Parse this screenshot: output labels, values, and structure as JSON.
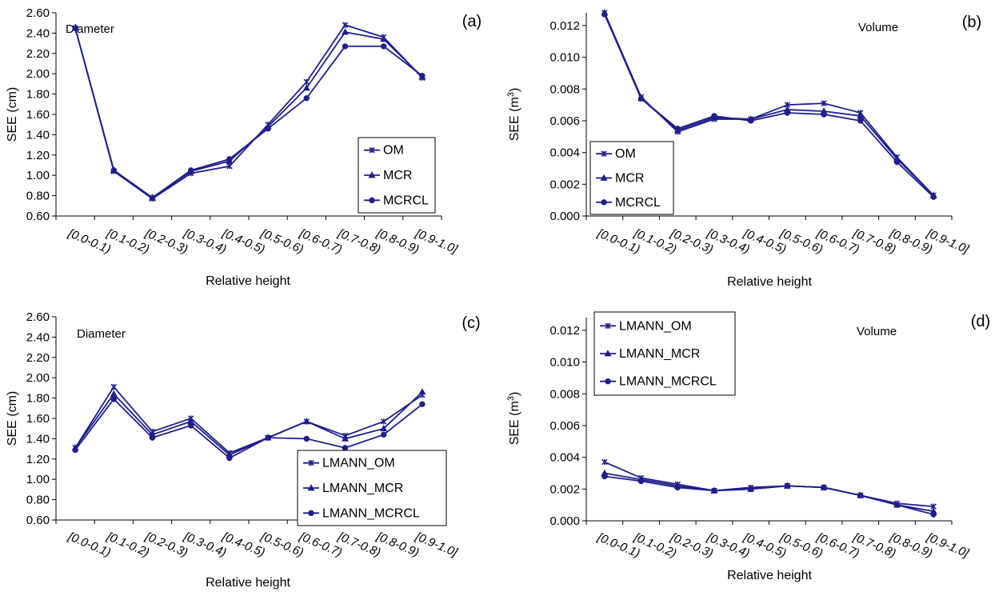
{
  "colors": {
    "series": "#1f1f8c",
    "axis": "#000000",
    "legend_border": "#000000"
  },
  "shared": {
    "categories": [
      "[0.0-0.1)",
      "[0.1-0.2)",
      "[0.2-0.3)",
      "[0.3-0.4)",
      "[0.4-0.5)",
      "[0.5-0.6)",
      "[0.6-0.7)",
      "[0.7-0.8)",
      "[0.8-0.9)",
      "[0.9-1.0]"
    ],
    "xlabel": "Relative height"
  },
  "chart_data": [
    {
      "type": "line",
      "panel_label": "(a)",
      "annotation": "Diameter",
      "ylabel": "SEE (cm)",
      "ylim": [
        0.6,
        2.6
      ],
      "yticks": [
        "0.60",
        "0.80",
        "1.00",
        "1.20",
        "1.40",
        "1.60",
        "1.80",
        "2.00",
        "2.20",
        "2.40",
        "2.60"
      ],
      "legend_position": "bottom-right",
      "series": [
        {
          "name": "OM",
          "marker": "x",
          "values": [
            2.45,
            1.04,
            0.77,
            1.02,
            1.09,
            1.5,
            1.92,
            2.48,
            2.36,
            1.96
          ]
        },
        {
          "name": "MCR",
          "marker": "triangle",
          "values": [
            2.45,
            1.05,
            0.78,
            1.04,
            1.14,
            1.48,
            1.86,
            2.41,
            2.34,
            1.97
          ]
        },
        {
          "name": "MCRCL",
          "marker": "circle",
          "values": [
            2.45,
            1.05,
            0.78,
            1.05,
            1.16,
            1.46,
            1.76,
            2.27,
            2.27,
            1.98
          ]
        }
      ]
    },
    {
      "type": "line",
      "panel_label": "(b)",
      "annotation": "Volume",
      "ylabel_main": "SEE (m",
      "ylabel_sup": "3",
      "ylabel_end": ")",
      "ylim": [
        0.0,
        0.0128
      ],
      "yticks": [
        "0.000",
        "0.002",
        "0.004",
        "0.006",
        "0.008",
        "0.010",
        "0.012"
      ],
      "legend_position": "bottom-left",
      "series": [
        {
          "name": "OM",
          "marker": "x",
          "values": [
            0.0128,
            0.0075,
            0.0053,
            0.0061,
            0.0061,
            0.007,
            0.0071,
            0.0065,
            0.0037,
            0.0013
          ]
        },
        {
          "name": "MCR",
          "marker": "triangle",
          "values": [
            0.0128,
            0.0074,
            0.0054,
            0.0062,
            0.0061,
            0.0067,
            0.0066,
            0.0063,
            0.0036,
            0.0013
          ]
        },
        {
          "name": "MCRCL",
          "marker": "circle",
          "values": [
            0.0127,
            0.0074,
            0.0055,
            0.0063,
            0.006,
            0.0065,
            0.0064,
            0.006,
            0.0034,
            0.0012
          ]
        }
      ]
    },
    {
      "type": "line",
      "panel_label": "(c)",
      "annotation": "Diameter",
      "ylabel": "SEE (cm)",
      "ylim": [
        0.6,
        2.6
      ],
      "yticks": [
        "0.60",
        "0.80",
        "1.00",
        "1.20",
        "1.40",
        "1.60",
        "1.80",
        "2.00",
        "2.20",
        "2.40",
        "2.60"
      ],
      "legend_position": "bottom-right",
      "series": [
        {
          "name": "LMANN_OM",
          "marker": "x",
          "values": [
            1.31,
            1.91,
            1.47,
            1.6,
            1.26,
            1.41,
            1.57,
            1.43,
            1.57,
            1.83
          ]
        },
        {
          "name": "LMANN_MCR",
          "marker": "triangle",
          "values": [
            1.31,
            1.84,
            1.44,
            1.57,
            1.24,
            1.41,
            1.57,
            1.4,
            1.5,
            1.86
          ]
        },
        {
          "name": "LMANN_MCRCL",
          "marker": "circle",
          "values": [
            1.29,
            1.79,
            1.41,
            1.53,
            1.21,
            1.41,
            1.4,
            1.31,
            1.44,
            1.74
          ]
        }
      ]
    },
    {
      "type": "line",
      "panel_label": "(d)",
      "annotation": "Volume",
      "ylabel_main": "SEE (m",
      "ylabel_sup": "3",
      "ylabel_end": ")",
      "ylim": [
        0.0,
        0.0128
      ],
      "yticks": [
        "0.000",
        "0.002",
        "0.004",
        "0.006",
        "0.008",
        "0.010",
        "0.012"
      ],
      "legend_position": "top-left",
      "series": [
        {
          "name": "LMANN_OM",
          "marker": "x",
          "values": [
            0.0037,
            0.0027,
            0.0023,
            0.0019,
            0.0021,
            0.0022,
            0.0021,
            0.0016,
            0.0011,
            0.0009
          ]
        },
        {
          "name": "LMANN_MCR",
          "marker": "triangle",
          "values": [
            0.003,
            0.0026,
            0.0022,
            0.0019,
            0.002,
            0.0022,
            0.0021,
            0.0016,
            0.001,
            0.0006
          ]
        },
        {
          "name": "LMANN_MCRCL",
          "marker": "circle",
          "values": [
            0.0028,
            0.0025,
            0.0021,
            0.0019,
            0.002,
            0.0022,
            0.0021,
            0.0016,
            0.001,
            0.0004
          ]
        }
      ]
    }
  ]
}
